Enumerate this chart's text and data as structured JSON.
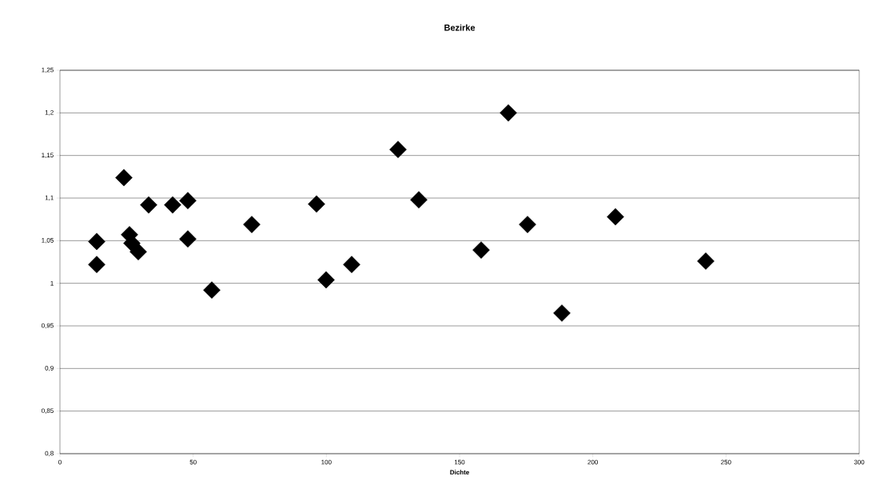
{
  "chart_data": {
    "type": "scatter",
    "title": "Bezirke",
    "xlabel": "Dichte",
    "x": [
      13.8,
      13.8,
      24,
      26.1,
      27,
      29.4,
      33.3,
      42.3,
      48,
      48,
      57,
      72,
      96.3,
      99.9,
      109.5,
      126.9,
      134.7,
      158.1,
      168.3,
      175.5,
      188.4,
      208.5,
      242.4
    ],
    "series": [
      {
        "color": "#000000",
        "values": [
          1.049,
          1.022,
          1.124,
          1.057,
          1.047,
          1.037,
          1.092,
          1.092,
          1.097,
          1.052,
          0.992,
          1.069,
          1.093,
          1.004,
          1.022,
          1.157,
          1.098,
          1.039,
          1.2,
          1.069,
          0.965,
          1.078,
          1.026
        ]
      }
    ],
    "xlim": [
      0,
      300
    ],
    "xticks": [
      0,
      50,
      100,
      150,
      200,
      250,
      300
    ],
    "ylim": [
      0.8,
      1.25
    ],
    "yticks": [
      {
        "value": 0.8,
        "label": "0,8"
      },
      {
        "value": 0.85,
        "label": "0,85"
      },
      {
        "value": 0.9,
        "label": "0,9"
      },
      {
        "value": 0.95,
        "label": "0,95"
      },
      {
        "value": 1,
        "label": "1"
      },
      {
        "value": 1.05,
        "label": "1,05"
      },
      {
        "value": 1.1,
        "label": "1,1"
      },
      {
        "value": 1.15,
        "label": "1,15"
      },
      {
        "value": 1.2,
        "label": "1,2"
      },
      {
        "value": 1.25,
        "label": "1,25"
      }
    ],
    "grid": "y",
    "marker": "diamond"
  }
}
